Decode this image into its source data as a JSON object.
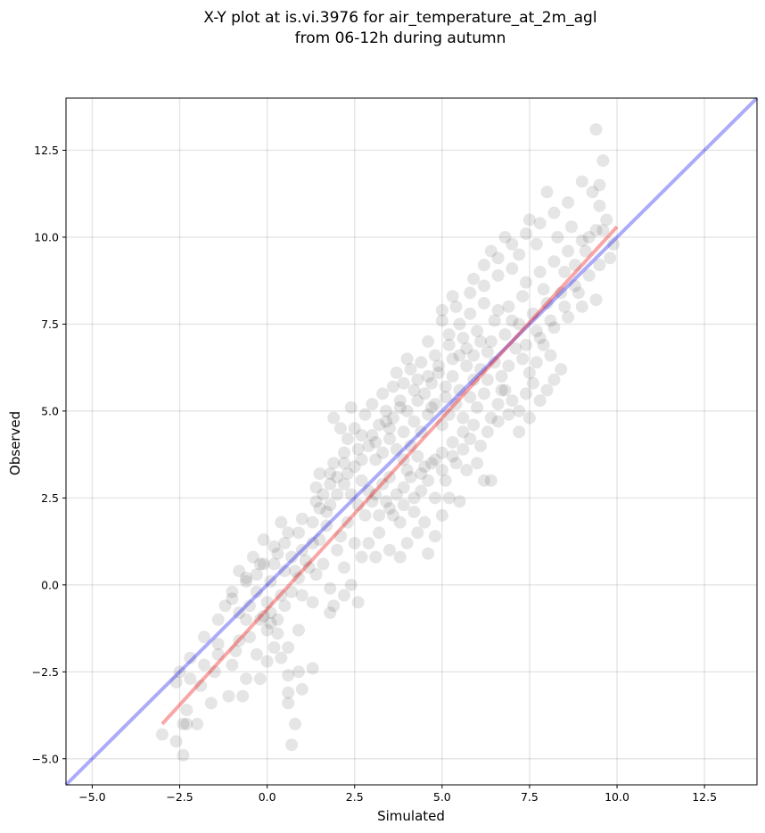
{
  "chart_data": {
    "type": "scatter",
    "title_lines": [
      "X-Y plot at is.vi.3976 for air_temperature_at_2m_agl",
      "from 06-12h during autumn"
    ],
    "xlabel": "Simulated",
    "ylabel": "Observed",
    "xlim": [
      -5.75,
      14.0
    ],
    "ylim": [
      -5.75,
      14.0
    ],
    "xticks": [
      -5.0,
      -2.5,
      0.0,
      2.5,
      5.0,
      7.5,
      10.0,
      12.5
    ],
    "xtick_labels": [
      "−5.0",
      "−2.5",
      "0.0",
      "2.5",
      "5.0",
      "7.5",
      "10.0",
      "12.5"
    ],
    "yticks": [
      -5.0,
      -2.5,
      0.0,
      2.5,
      5.0,
      7.5,
      10.0,
      12.5
    ],
    "ytick_labels": [
      "−5.0",
      "−2.5",
      "0.0",
      "2.5",
      "5.0",
      "7.5",
      "10.0",
      "12.5"
    ],
    "grid": true,
    "point_color": "#000000",
    "point_alpha": 0.1,
    "identity_line": {
      "color": "#0000ee",
      "alpha": 0.33,
      "from": [
        -5.75,
        -5.75
      ],
      "to": [
        14.0,
        14.0
      ]
    },
    "fit_line": {
      "color": "#ee0000",
      "alpha": 0.35,
      "from": [
        -3.0,
        -4.0
      ],
      "to": [
        10.0,
        10.3
      ]
    },
    "points": [
      [
        -2.4,
        -4.9
      ],
      [
        -2.4,
        -4.0
      ],
      [
        -2.3,
        -4.0
      ],
      [
        -2.6,
        -4.5
      ],
      [
        -3.0,
        -4.3
      ],
      [
        -2.3,
        -3.6
      ],
      [
        -2.0,
        -4.0
      ],
      [
        -1.6,
        -3.4
      ],
      [
        -1.1,
        -3.2
      ],
      [
        -0.7,
        -3.2
      ],
      [
        -0.6,
        -2.7
      ],
      [
        -0.2,
        -2.7
      ],
      [
        0.7,
        -4.6
      ],
      [
        0.8,
        -4.0
      ],
      [
        0.6,
        -3.4
      ],
      [
        0.6,
        -3.1
      ],
      [
        1.0,
        -3.0
      ],
      [
        1.3,
        -2.4
      ],
      [
        0.9,
        -2.5
      ],
      [
        0.6,
        -2.6
      ],
      [
        -2.5,
        -2.5
      ],
      [
        -2.2,
        -2.7
      ],
      [
        -1.9,
        -2.9
      ],
      [
        -1.5,
        -2.5
      ],
      [
        -1.8,
        -2.3
      ],
      [
        -1.4,
        -2.0
      ],
      [
        -1.0,
        -2.3
      ],
      [
        -0.9,
        -1.9
      ],
      [
        -0.8,
        -1.6
      ],
      [
        -1.4,
        -1.7
      ],
      [
        -0.5,
        -1.5
      ],
      [
        -0.3,
        -2.0
      ],
      [
        0.0,
        -2.2
      ],
      [
        0.2,
        -1.8
      ],
      [
        0.4,
        -2.1
      ],
      [
        0.6,
        -1.8
      ],
      [
        0.9,
        -1.3
      ],
      [
        0.3,
        -1.4
      ],
      [
        0.0,
        -1.3
      ],
      [
        -0.2,
        -1.0
      ],
      [
        -0.6,
        -1.0
      ],
      [
        -0.8,
        -0.8
      ],
      [
        -0.5,
        -0.6
      ],
      [
        -0.3,
        -0.2
      ],
      [
        -1.0,
        -0.2
      ],
      [
        -0.6,
        0.1
      ],
      [
        -0.3,
        0.3
      ],
      [
        -0.1,
        0.6
      ],
      [
        0.2,
        0.6
      ],
      [
        0.1,
        0.1
      ],
      [
        0.0,
        -0.5
      ],
      [
        0.1,
        -0.8
      ],
      [
        0.3,
        -1.0
      ],
      [
        0.1,
        -1.1
      ],
      [
        -0.1,
        -0.9
      ],
      [
        0.5,
        -0.6
      ],
      [
        0.7,
        -0.2
      ],
      [
        1.0,
        -0.3
      ],
      [
        1.3,
        -0.5
      ],
      [
        0.9,
        0.2
      ],
      [
        0.5,
        0.4
      ],
      [
        0.3,
        0.9
      ],
      [
        0.5,
        1.2
      ],
      [
        0.7,
        0.8
      ],
      [
        1.0,
        1.0
      ],
      [
        1.2,
        0.5
      ],
      [
        1.4,
        0.3
      ],
      [
        1.6,
        0.6
      ],
      [
        1.8,
        -0.1
      ],
      [
        1.9,
        -0.6
      ],
      [
        1.8,
        -0.8
      ],
      [
        2.2,
        -0.3
      ],
      [
        2.4,
        0.0
      ],
      [
        2.6,
        -0.5
      ],
      [
        2.2,
        0.5
      ],
      [
        1.5,
        1.3
      ],
      [
        1.3,
        1.8
      ],
      [
        1.5,
        2.2
      ],
      [
        1.8,
        2.3
      ],
      [
        1.7,
        1.7
      ],
      [
        2.0,
        1.0
      ],
      [
        2.1,
        1.4
      ],
      [
        2.3,
        1.8
      ],
      [
        2.5,
        1.2
      ],
      [
        2.7,
        0.8
      ],
      [
        2.9,
        1.2
      ],
      [
        3.1,
        0.8
      ],
      [
        3.2,
        1.5
      ],
      [
        3.5,
        1.0
      ],
      [
        3.8,
        0.8
      ],
      [
        4.0,
        1.2
      ],
      [
        4.3,
        1.5
      ],
      [
        4.6,
        0.9
      ],
      [
        4.8,
        1.4
      ],
      [
        4.5,
        1.8
      ],
      [
        4.2,
        2.1
      ],
      [
        3.8,
        1.8
      ],
      [
        3.5,
        2.2
      ],
      [
        3.2,
        2.0
      ],
      [
        3.0,
        2.4
      ],
      [
        2.8,
        2.0
      ],
      [
        2.6,
        2.3
      ],
      [
        2.4,
        2.6
      ],
      [
        2.2,
        2.9
      ],
      [
        2.0,
        3.1
      ],
      [
        1.8,
        2.9
      ],
      [
        1.6,
        2.6
      ],
      [
        1.4,
        2.8
      ],
      [
        1.5,
        3.2
      ],
      [
        1.9,
        3.5
      ],
      [
        2.2,
        3.8
      ],
      [
        2.5,
        3.4
      ],
      [
        2.7,
        3.0
      ],
      [
        2.9,
        2.7
      ],
      [
        3.1,
        2.6
      ],
      [
        3.3,
        2.9
      ],
      [
        3.5,
        3.1
      ],
      [
        3.7,
        2.6
      ],
      [
        3.9,
        2.8
      ],
      [
        4.1,
        3.1
      ],
      [
        4.4,
        2.7
      ],
      [
        4.6,
        3.0
      ],
      [
        4.8,
        2.5
      ],
      [
        5.0,
        2.0
      ],
      [
        5.2,
        2.5
      ],
      [
        5.5,
        2.4
      ],
      [
        5.1,
        3.0
      ],
      [
        5.4,
        3.5
      ],
      [
        5.7,
        3.3
      ],
      [
        6.0,
        3.5
      ],
      [
        6.2,
        3.0
      ],
      [
        6.4,
        3.0
      ],
      [
        6.1,
        4.0
      ],
      [
        5.8,
        4.2
      ],
      [
        5.6,
        3.9
      ],
      [
        5.3,
        4.1
      ],
      [
        5.0,
        3.8
      ],
      [
        4.8,
        3.6
      ],
      [
        4.5,
        3.4
      ],
      [
        4.3,
        3.7
      ],
      [
        4.1,
        4.0
      ],
      [
        3.9,
        3.6
      ],
      [
        3.7,
        3.9
      ],
      [
        3.5,
        4.2
      ],
      [
        3.3,
        3.8
      ],
      [
        3.1,
        3.6
      ],
      [
        2.9,
        4.0
      ],
      [
        2.7,
        4.3
      ],
      [
        2.5,
        4.5
      ],
      [
        2.3,
        4.2
      ],
      [
        2.1,
        4.5
      ],
      [
        1.9,
        4.8
      ],
      [
        2.4,
        5.1
      ],
      [
        2.8,
        4.9
      ],
      [
        3.0,
        5.2
      ],
      [
        3.2,
        4.6
      ],
      [
        3.4,
        5.0
      ],
      [
        3.6,
        4.8
      ],
      [
        3.8,
        5.3
      ],
      [
        4.0,
        5.0
      ],
      [
        4.2,
        4.7
      ],
      [
        4.4,
        4.4
      ],
      [
        4.6,
        4.9
      ],
      [
        4.8,
        5.2
      ],
      [
        5.0,
        4.6
      ],
      [
        5.2,
        4.9
      ],
      [
        5.4,
        5.2
      ],
      [
        5.6,
        4.8
      ],
      [
        5.8,
        5.4
      ],
      [
        6.0,
        5.1
      ],
      [
        6.2,
        5.5
      ],
      [
        6.4,
        4.8
      ],
      [
        6.6,
        5.2
      ],
      [
        6.8,
        5.6
      ],
      [
        7.0,
        5.3
      ],
      [
        7.2,
        5.0
      ],
      [
        7.4,
        5.5
      ],
      [
        7.6,
        5.8
      ],
      [
        7.8,
        5.3
      ],
      [
        8.0,
        5.6
      ],
      [
        8.2,
        5.9
      ],
      [
        8.4,
        6.2
      ],
      [
        8.1,
        6.6
      ],
      [
        7.9,
        6.9
      ],
      [
        7.7,
        6.4
      ],
      [
        7.5,
        6.1
      ],
      [
        7.3,
        6.5
      ],
      [
        7.1,
        6.8
      ],
      [
        6.9,
        6.3
      ],
      [
        6.7,
        6.0
      ],
      [
        6.5,
        6.4
      ],
      [
        6.3,
        6.7
      ],
      [
        6.1,
        6.2
      ],
      [
        5.9,
        5.9
      ],
      [
        5.7,
        6.3
      ],
      [
        5.5,
        6.6
      ],
      [
        5.3,
        6.0
      ],
      [
        5.1,
        5.7
      ],
      [
        4.9,
        6.1
      ],
      [
        4.7,
        5.8
      ],
      [
        4.5,
        5.5
      ],
      [
        4.3,
        5.9
      ],
      [
        4.1,
        6.2
      ],
      [
        3.9,
        5.8
      ],
      [
        3.7,
        6.1
      ],
      [
        4.4,
        6.4
      ],
      [
        4.8,
        6.6
      ],
      [
        5.2,
        6.9
      ],
      [
        5.6,
        7.1
      ],
      [
        6.0,
        7.3
      ],
      [
        6.4,
        7.0
      ],
      [
        6.8,
        7.2
      ],
      [
        7.2,
        7.5
      ],
      [
        7.6,
        7.8
      ],
      [
        8.0,
        8.1
      ],
      [
        8.4,
        8.4
      ],
      [
        8.8,
        8.6
      ],
      [
        9.2,
        8.9
      ],
      [
        9.5,
        9.2
      ],
      [
        9.8,
        9.4
      ],
      [
        9.4,
        8.2
      ],
      [
        9.0,
        8.0
      ],
      [
        8.6,
        7.7
      ],
      [
        8.2,
        7.4
      ],
      [
        7.8,
        7.1
      ],
      [
        7.4,
        6.9
      ],
      [
        7.0,
        7.6
      ],
      [
        6.6,
        7.9
      ],
      [
        6.2,
        8.1
      ],
      [
        5.8,
        7.8
      ],
      [
        5.5,
        7.5
      ],
      [
        5.2,
        7.2
      ],
      [
        5.0,
        7.6
      ],
      [
        5.4,
        8.0
      ],
      [
        5.8,
        8.4
      ],
      [
        6.2,
        8.6
      ],
      [
        6.6,
        8.9
      ],
      [
        7.0,
        9.1
      ],
      [
        7.4,
        8.7
      ],
      [
        7.8,
        9.0
      ],
      [
        8.2,
        9.3
      ],
      [
        8.6,
        9.6
      ],
      [
        9.0,
        9.9
      ],
      [
        9.4,
        10.2
      ],
      [
        9.7,
        10.5
      ],
      [
        9.5,
        10.9
      ],
      [
        9.3,
        11.3
      ],
      [
        9.0,
        11.6
      ],
      [
        8.6,
        11.0
      ],
      [
        8.2,
        10.7
      ],
      [
        7.8,
        10.4
      ],
      [
        7.4,
        10.1
      ],
      [
        7.0,
        9.8
      ],
      [
        6.6,
        9.4
      ],
      [
        6.2,
        9.2
      ],
      [
        7.5,
        10.5
      ],
      [
        8.0,
        11.3
      ],
      [
        9.5,
        11.5
      ],
      [
        9.6,
        12.2
      ],
      [
        9.4,
        13.1
      ],
      [
        8.8,
        9.2
      ],
      [
        9.1,
        9.6
      ],
      [
        8.5,
        9.0
      ],
      [
        7.9,
        8.5
      ],
      [
        7.3,
        8.3
      ],
      [
        6.9,
        8.0
      ],
      [
        6.5,
        7.6
      ],
      [
        6.1,
        7.0
      ],
      [
        5.7,
        6.8
      ],
      [
        5.3,
        6.5
      ],
      [
        4.9,
        6.3
      ],
      [
        4.6,
        6.0
      ],
      [
        4.2,
        5.6
      ],
      [
        3.8,
        5.1
      ],
      [
        3.4,
        4.7
      ],
      [
        3.0,
        4.3
      ],
      [
        2.6,
        3.9
      ],
      [
        2.2,
        3.5
      ],
      [
        1.8,
        3.2
      ],
      [
        1.4,
        2.4
      ],
      [
        1.0,
        1.9
      ],
      [
        0.6,
        1.5
      ],
      [
        0.2,
        1.1
      ],
      [
        -0.2,
        0.6
      ],
      [
        -0.6,
        0.2
      ],
      [
        -1.0,
        -0.4
      ],
      [
        -1.4,
        -1.0
      ],
      [
        -1.8,
        -1.5
      ],
      [
        -2.2,
        -2.1
      ],
      [
        -2.6,
        -2.8
      ],
      [
        3.4,
        2.4
      ],
      [
        3.6,
        2.0
      ],
      [
        3.9,
        2.3
      ],
      [
        4.2,
        2.5
      ],
      [
        4.0,
        3.3
      ],
      [
        4.4,
        3.2
      ],
      [
        4.7,
        3.5
      ],
      [
        5.0,
        3.3
      ],
      [
        5.3,
        3.7
      ],
      [
        5.6,
        4.4
      ],
      [
        5.9,
        4.6
      ],
      [
        6.3,
        4.4
      ],
      [
        6.6,
        4.7
      ],
      [
        6.9,
        4.9
      ],
      [
        7.2,
        4.4
      ],
      [
        7.5,
        4.8
      ],
      [
        6.7,
        5.6
      ],
      [
        6.3,
        5.9
      ],
      [
        5.9,
        6.6
      ],
      [
        5.5,
        5.6
      ],
      [
        5.1,
        5.4
      ],
      [
        4.7,
        5.1
      ],
      [
        4.3,
        5.3
      ],
      [
        3.9,
        4.4
      ],
      [
        3.5,
        4.5
      ],
      [
        3.1,
        4.1
      ],
      [
        2.7,
        3.6
      ],
      [
        2.3,
        3.2
      ],
      [
        2.0,
        2.6
      ],
      [
        1.7,
        2.1
      ],
      [
        3.3,
        5.5
      ],
      [
        3.6,
        5.7
      ],
      [
        4.0,
        6.5
      ],
      [
        4.6,
        7.0
      ],
      [
        5.0,
        7.9
      ],
      [
        5.3,
        8.3
      ],
      [
        5.9,
        8.8
      ],
      [
        6.4,
        9.6
      ],
      [
        6.8,
        10.0
      ],
      [
        7.2,
        9.5
      ],
      [
        7.7,
        9.8
      ],
      [
        8.3,
        10.0
      ],
      [
        8.7,
        10.3
      ],
      [
        9.2,
        10.0
      ],
      [
        9.6,
        10.2
      ],
      [
        9.9,
        9.8
      ],
      [
        8.9,
        8.4
      ],
      [
        8.5,
        8.0
      ],
      [
        8.1,
        7.6
      ],
      [
        7.7,
        7.3
      ],
      [
        0.4,
        -0.3
      ],
      [
        0.8,
        0.4
      ],
      [
        1.1,
        0.7
      ],
      [
        1.3,
        1.2
      ],
      [
        0.9,
        1.5
      ],
      [
        0.4,
        1.8
      ],
      [
        -0.1,
        1.3
      ],
      [
        -0.4,
        0.8
      ],
      [
        -0.8,
        0.4
      ],
      [
        -1.2,
        -0.6
      ]
    ]
  }
}
